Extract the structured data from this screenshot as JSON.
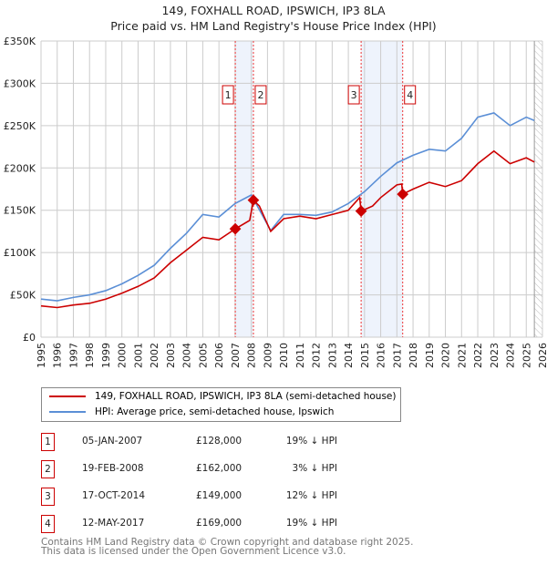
{
  "chart_data": {
    "type": "line",
    "title": "149, FOXHALL ROAD, IPSWICH, IP3 8LA",
    "subtitle": "Price paid vs. HM Land Registry's House Price Index (HPI)",
    "xlim": [
      1995,
      2026
    ],
    "ylim": [
      0,
      350000
    ],
    "x_ticks": [
      "1995",
      "1996",
      "1997",
      "1998",
      "1999",
      "2000",
      "2001",
      "2002",
      "2003",
      "2004",
      "2005",
      "2006",
      "2007",
      "2008",
      "2009",
      "2010",
      "2011",
      "2012",
      "2013",
      "2014",
      "2015",
      "2016",
      "2017",
      "2018",
      "2019",
      "2020",
      "2021",
      "2022",
      "2023",
      "2024",
      "2025",
      "2026"
    ],
    "y_ticks": [
      {
        "v": 0,
        "label": "£0"
      },
      {
        "v": 50000,
        "label": "£50K"
      },
      {
        "v": 100000,
        "label": "£100K"
      },
      {
        "v": 150000,
        "label": "£150K"
      },
      {
        "v": 200000,
        "label": "£200K"
      },
      {
        "v": 250000,
        "label": "£250K"
      },
      {
        "v": 300000,
        "label": "£300K"
      },
      {
        "v": 350000,
        "label": "£350K"
      }
    ],
    "series": [
      {
        "name": "149, FOXHALL ROAD, IPSWICH, IP3 8LA (semi-detached house)",
        "color": "#cc0000",
        "x": [
          1995,
          1996,
          1997,
          1998,
          1999,
          2000,
          2001,
          2002,
          2003,
          2004,
          2005,
          2006,
          2007.01,
          2007.9,
          2008.13,
          2008.5,
          2009.2,
          2010,
          2011,
          2012,
          2013,
          2014,
          2014.7,
          2014.79,
          2015.5,
          2016,
          2017,
          2017.3,
          2017.36,
          2018,
          2019,
          2020,
          2021,
          2022,
          2023,
          2024,
          2025,
          2025.5
        ],
        "y": [
          37000,
          35000,
          38000,
          40000,
          45000,
          52000,
          60000,
          70000,
          88000,
          103000,
          118000,
          115000,
          128000,
          138000,
          162000,
          155000,
          125000,
          140000,
          143000,
          140000,
          145000,
          150000,
          165000,
          149000,
          155000,
          165000,
          180000,
          181000,
          169000,
          175000,
          183000,
          178000,
          185000,
          205000,
          220000,
          205000,
          212000,
          207000
        ]
      },
      {
        "name": "HPI: Average price, semi-detached house, Ipswich",
        "color": "#5b8fd6",
        "x": [
          1995,
          1996,
          1997,
          1998,
          1999,
          2000,
          2001,
          2002,
          2003,
          2004,
          2005,
          2006,
          2007,
          2008,
          2009.2,
          2010,
          2011,
          2012,
          2013,
          2014,
          2015,
          2016,
          2017,
          2018,
          2019,
          2020,
          2021,
          2022,
          2023,
          2024,
          2025,
          2025.5
        ],
        "y": [
          45000,
          43000,
          47000,
          50000,
          55000,
          63000,
          73000,
          85000,
          105000,
          123000,
          145000,
          142000,
          158000,
          168000,
          126000,
          145000,
          145000,
          144000,
          148000,
          158000,
          172000,
          190000,
          206000,
          215000,
          222000,
          220000,
          235000,
          260000,
          265000,
          250000,
          260000,
          256000
        ]
      }
    ],
    "sales": [
      {
        "id": "1",
        "x": 2007.01,
        "y": 128000,
        "date": "05-JAN-2007",
        "price": "£128,000",
        "delta": "19% ↓ HPI"
      },
      {
        "id": "2",
        "x": 2008.13,
        "y": 162000,
        "date": "19-FEB-2008",
        "price": "£162,000",
        "delta": "3% ↓ HPI"
      },
      {
        "id": "3",
        "x": 2014.79,
        "y": 149000,
        "date": "17-OCT-2014",
        "price": "£149,000",
        "delta": "12% ↓ HPI"
      },
      {
        "id": "4",
        "x": 2017.36,
        "y": 169000,
        "date": "12-MAY-2017",
        "price": "£169,000",
        "delta": "19% ↓ HPI"
      }
    ],
    "shaded": [
      [
        2007.01,
        2008.13
      ],
      [
        2014.79,
        2017.36
      ]
    ],
    "forecast_start": 2025.5
  },
  "footer": {
    "line1": "Contains HM Land Registry data © Crown copyright and database right 2025.",
    "line2": "This data is licensed under the Open Government Licence v3.0."
  }
}
